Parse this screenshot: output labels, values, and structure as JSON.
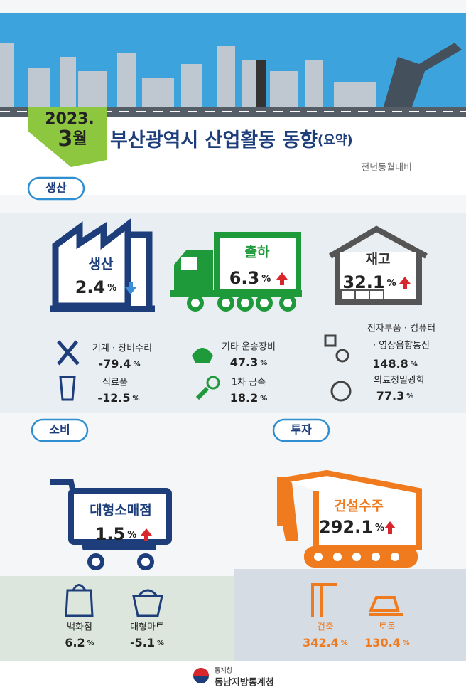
{
  "header": {
    "year": "2023.",
    "month": "3",
    "month_unit": "월",
    "title": "부산광역시 산업활동 동향",
    "title_suffix": "(요약)",
    "note": "전년동월대비"
  },
  "sections": [
    {
      "label": "생산",
      "main": [
        {
          "label": "생산",
          "value": "2.4",
          "unit": "%",
          "direction": "down"
        },
        {
          "label": "출하",
          "value": "6.3",
          "unit": "%",
          "direction": "up"
        },
        {
          "label": "재고",
          "value": "32.1",
          "unit": "%",
          "direction": "up"
        }
      ],
      "items": [
        {
          "label": [
            "기계 · 장비수리"
          ],
          "value": "-79.4",
          "unit": "%"
        },
        {
          "label": [
            "식료품"
          ],
          "value": "-12.5",
          "unit": "%"
        },
        {
          "label": [
            "기타 운송장비"
          ],
          "value": "47.3",
          "unit": "%"
        },
        {
          "label": [
            "1차 금속"
          ],
          "value": "18.2",
          "unit": "%"
        },
        {
          "label": [
            "전자부품 · 컴퓨터",
            "· 영상음향통신"
          ],
          "value": "148.8",
          "unit": "%"
        },
        {
          "label": [
            "의료정밀광학"
          ],
          "value": "77.3",
          "unit": "%"
        }
      ]
    },
    {
      "label": "소비",
      "main": [
        {
          "label": "대형소매점",
          "value": "1.5",
          "unit": "%",
          "direction": "up"
        }
      ],
      "items": [
        {
          "label": [
            "백화점"
          ],
          "value": "6.2",
          "unit": "%"
        },
        {
          "label": [
            "대형마트"
          ],
          "value": "-5.1",
          "unit": "%"
        }
      ]
    },
    {
      "label": "투자",
      "main": [
        {
          "label": "건설수주",
          "value": "292.1",
          "unit": "%",
          "direction": "up"
        }
      ],
      "items": [
        {
          "label": [
            "건축"
          ],
          "value": "342.4",
          "unit": "%"
        },
        {
          "label": [
            "토목"
          ],
          "value": "130.4",
          "unit": "%"
        }
      ]
    }
  ],
  "footer": {
    "agency": "통계청",
    "office": "동남지방통계청"
  }
}
